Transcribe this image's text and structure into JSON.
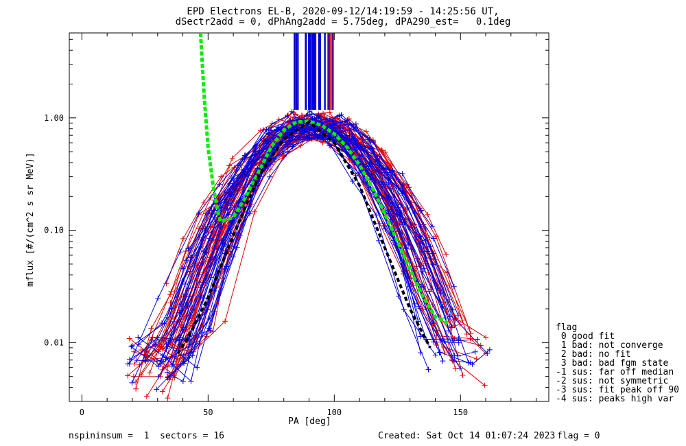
{
  "chart_data": {
    "type": "line",
    "title": "EPD Electrons EL-B, 2020-09-12/14:19:59 - 14:25:56 UT,",
    "subtitle": "dSectr2add = 0, dPhAng2add = 5.75deg, dPA290_est=   0.1deg",
    "xlabel": "PA [deg]",
    "ylabel": "mflux [#/(cm^2 s sr MeV)]",
    "xlim": [
      -5,
      185
    ],
    "ylim": [
      0.003,
      5.7
    ],
    "yscale": "log",
    "x_ticks": [
      "0",
      "50",
      "100",
      "150"
    ],
    "y_ticks": [
      "0.01",
      "0.10",
      "1.00"
    ],
    "colors": {
      "red": "#e00000",
      "blue": "#0000dd",
      "green": "#00ee00",
      "black": "#000000"
    },
    "series": [
      {
        "x": [
          55,
          60,
          65,
          70,
          75,
          80,
          85,
          90,
          95,
          100,
          105,
          110,
          115,
          120,
          125,
          130,
          135,
          140,
          145
        ],
        "values": [
          0.12,
          0.13,
          0.2,
          0.33,
          0.55,
          0.78,
          0.92,
          0.93,
          0.86,
          0.72,
          0.55,
          0.38,
          0.24,
          0.14,
          0.08,
          0.045,
          0.026,
          0.017,
          0.015
        ]
      },
      {
        "x": [
          38,
          42,
          50,
          60,
          70,
          80,
          90,
          100,
          110,
          120,
          130,
          138
        ],
        "values": [
          0.008,
          0.011,
          0.025,
          0.09,
          0.3,
          0.65,
          0.92,
          0.6,
          0.25,
          0.07,
          0.02,
          0.009
        ]
      }
    ],
    "legend": {
      "title": "flag",
      "entries": [
        " 0 good fit",
        " 1 bad: not converge",
        " 2 bad: no fit",
        " 3 bad: bad fgm state",
        "-1 sus: far off median",
        "-2 sus: not symmetric",
        "-3 sus: fit peak off 90",
        "-4 sus: peaks high var"
      ]
    }
  },
  "footer": {
    "left": "nspininsum =  1  sectors = 16",
    "created": "Created: Sat Oct 14 01:07:24 2023",
    "flag": "flag = 0"
  }
}
